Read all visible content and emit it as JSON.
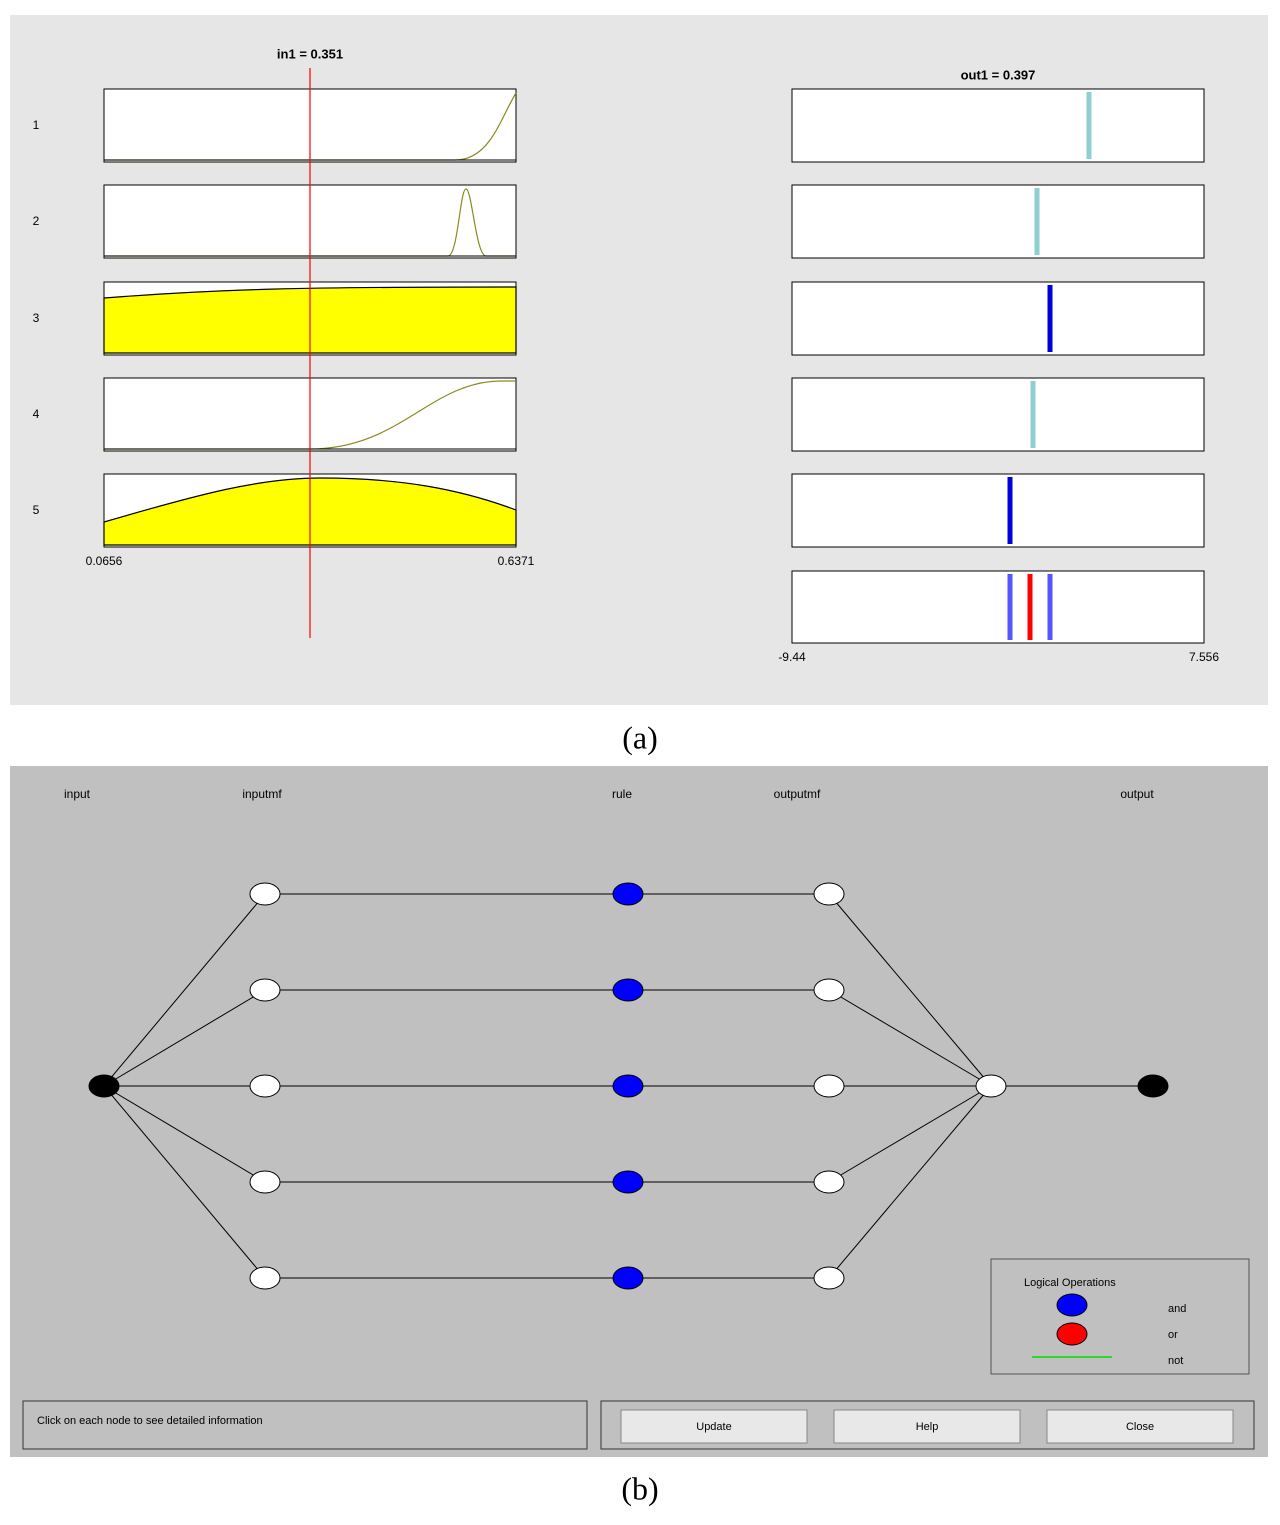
{
  "panel_a": {
    "input": {
      "title": "in1 = 0.351",
      "rule_labels": [
        "1",
        "2",
        "3",
        "4",
        "5"
      ],
      "min_label": "0.0656",
      "max_label": "0.6371"
    },
    "output": {
      "title": "out1 = 0.397",
      "min_label": "-9.44",
      "max_label": "7.556"
    },
    "caption": "(a)"
  },
  "panel_b": {
    "column_labels": [
      "input",
      "inputmf",
      "rule",
      "outputmf",
      "output"
    ],
    "legend": {
      "title": "Logical Operations",
      "items": [
        "and",
        "or",
        "not"
      ]
    },
    "status": "Click on each node to see detailed information",
    "buttons": [
      "Update",
      "Help",
      "Close"
    ],
    "caption": "(b)"
  }
}
